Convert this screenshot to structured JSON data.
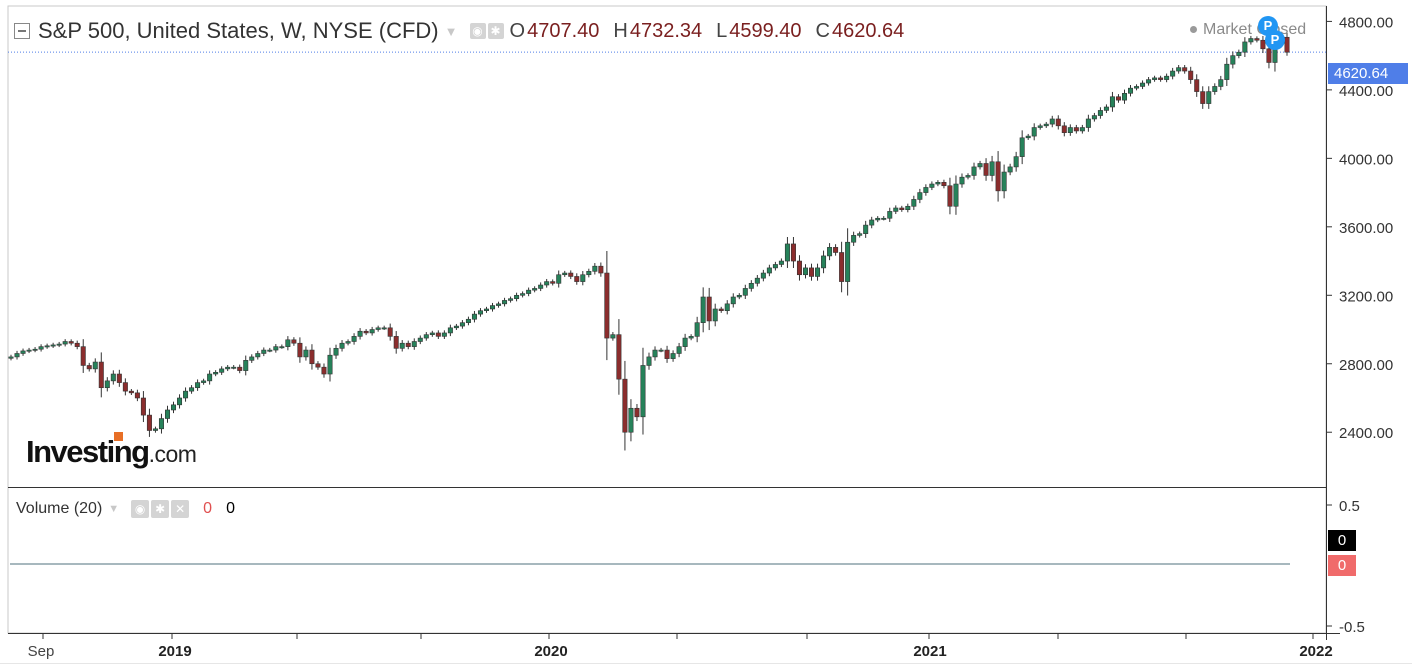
{
  "header": {
    "symbol_title": "S&P 500, United States, W, NYSE (CFD)",
    "ohlc": [
      {
        "key": "O",
        "value": "4707.40"
      },
      {
        "key": "H",
        "value": "4732.34"
      },
      {
        "key": "L",
        "value": "4599.40"
      },
      {
        "key": "C",
        "value": "4620.64"
      }
    ],
    "market_status": "Market Closed",
    "badge_letter": "P"
  },
  "volume_pane": {
    "label": "Volume (20)",
    "value_red": "0",
    "value_black": "0",
    "axis_ticks": [
      "0.5",
      "-0.5"
    ],
    "tags": [
      "0",
      "0"
    ]
  },
  "price_tag": "4620.64",
  "logo": {
    "brand": "Investing",
    "suffix": ".com"
  },
  "colors": {
    "up": "#26825a",
    "down": "#8b2d2d",
    "price_line": "#4f7ee8",
    "volume_zero_tag": "#f06b6b"
  },
  "chart_data": {
    "type": "candlestick",
    "interval": "weekly",
    "y_axis": {
      "ticks": [
        4800,
        4400,
        4000,
        3600,
        3200,
        2800,
        2400
      ],
      "ylim": [
        2080,
        4890
      ]
    },
    "x_axis": {
      "labels": [
        "Sep",
        "2019",
        "2020",
        "2021",
        "2022"
      ],
      "bold_labels": [
        "2019",
        "2020",
        "2021",
        "2022"
      ]
    },
    "last_close": 4620.64,
    "series_close_weekly": [
      2840,
      2860,
      2875,
      2880,
      2885,
      2900,
      2905,
      2910,
      2915,
      2930,
      2920,
      2900,
      2790,
      2770,
      2810,
      2660,
      2700,
      2740,
      2690,
      2640,
      2630,
      2600,
      2500,
      2410,
      2420,
      2480,
      2530,
      2560,
      2600,
      2640,
      2660,
      2690,
      2700,
      2740,
      2750,
      2770,
      2780,
      2780,
      2760,
      2820,
      2840,
      2860,
      2880,
      2880,
      2900,
      2900,
      2940,
      2920,
      2840,
      2880,
      2800,
      2780,
      2740,
      2850,
      2890,
      2920,
      2930,
      2960,
      2990,
      2980,
      3000,
      3010,
      3010,
      2960,
      2890,
      2920,
      2900,
      2930,
      2950,
      2970,
      2980,
      2960,
      2980,
      3010,
      3020,
      3040,
      3060,
      3090,
      3110,
      3120,
      3140,
      3150,
      3170,
      3180,
      3200,
      3210,
      3230,
      3240,
      3260,
      3280,
      3270,
      3320,
      3330,
      3310,
      3280,
      3320,
      3340,
      3370,
      3330,
      2950,
      2970,
      2710,
      2400,
      2540,
      2490,
      2790,
      2840,
      2880,
      2880,
      2830,
      2860,
      2900,
      2950,
      2960,
      3040,
      3190,
      3050,
      3120,
      3110,
      3150,
      3190,
      3200,
      3240,
      3270,
      3300,
      3330,
      3360,
      3380,
      3400,
      3500,
      3400,
      3320,
      3360,
      3310,
      3360,
      3430,
      3480,
      3450,
      3280,
      3510,
      3550,
      3560,
      3610,
      3640,
      3650,
      3650,
      3690,
      3710,
      3700,
      3720,
      3760,
      3800,
      3830,
      3850,
      3860,
      3840,
      3720,
      3850,
      3890,
      3900,
      3950,
      3970,
      3900,
      3980,
      3810,
      3920,
      3950,
      4010,
      4120,
      4130,
      4180,
      4190,
      4200,
      4230,
      4190,
      4150,
      4180,
      4160,
      4180,
      4230,
      4250,
      4280,
      4300,
      4360,
      4340,
      4380,
      4410,
      4420,
      4440,
      4460,
      4470,
      4460,
      4480,
      4510,
      4530,
      4510,
      4460,
      4390,
      4320,
      4390,
      4420,
      4460,
      4550,
      4600,
      4620,
      4680,
      4700,
      4690,
      4640,
      4560,
      4700,
      4680,
      4620
    ]
  }
}
